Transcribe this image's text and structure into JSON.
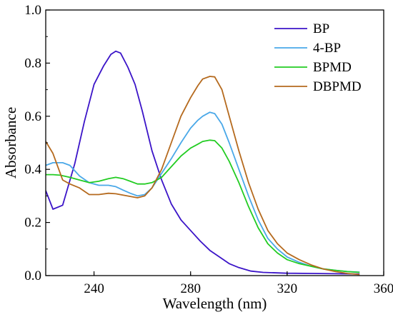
{
  "chart_data": {
    "type": "line",
    "title": "",
    "xlabel": "Wavelength (nm)",
    "ylabel": "Absorbance",
    "xlim": [
      220,
      360
    ],
    "ylim": [
      0,
      1.0
    ],
    "xticks": [
      240,
      280,
      320,
      360
    ],
    "yticks": [
      "0.0",
      "0.2",
      "0.4",
      "0.6",
      "0.8",
      "1.0"
    ],
    "grid": false,
    "legend_position": "top-right",
    "series": [
      {
        "name": "BP",
        "color": "#3b14c8",
        "points": [
          [
            220,
            0.32
          ],
          [
            223,
            0.25
          ],
          [
            227,
            0.265
          ],
          [
            232,
            0.42
          ],
          [
            236,
            0.58
          ],
          [
            240,
            0.72
          ],
          [
            244,
            0.79
          ],
          [
            247,
            0.833
          ],
          [
            249,
            0.845
          ],
          [
            251,
            0.838
          ],
          [
            254,
            0.785
          ],
          [
            257,
            0.72
          ],
          [
            260,
            0.62
          ],
          [
            264,
            0.47
          ],
          [
            268,
            0.36
          ],
          [
            272,
            0.27
          ],
          [
            276,
            0.21
          ],
          [
            280,
            0.17
          ],
          [
            284,
            0.13
          ],
          [
            288,
            0.095
          ],
          [
            292,
            0.07
          ],
          [
            296,
            0.045
          ],
          [
            300,
            0.03
          ],
          [
            305,
            0.017
          ],
          [
            310,
            0.012
          ],
          [
            320,
            0.009
          ],
          [
            330,
            0.008
          ],
          [
            340,
            0.007
          ],
          [
            350,
            0.006
          ]
        ]
      },
      {
        "name": "4-BP",
        "color": "#4aa8e8",
        "points": [
          [
            220,
            0.415
          ],
          [
            223,
            0.425
          ],
          [
            227,
            0.425
          ],
          [
            230,
            0.415
          ],
          [
            234,
            0.375
          ],
          [
            238,
            0.35
          ],
          [
            242,
            0.34
          ],
          [
            246,
            0.34
          ],
          [
            249,
            0.335
          ],
          [
            252,
            0.322
          ],
          [
            255,
            0.31
          ],
          [
            258,
            0.3
          ],
          [
            261,
            0.305
          ],
          [
            264,
            0.33
          ],
          [
            268,
            0.385
          ],
          [
            272,
            0.44
          ],
          [
            276,
            0.5
          ],
          [
            280,
            0.555
          ],
          [
            283,
            0.585
          ],
          [
            285,
            0.6
          ],
          [
            288,
            0.615
          ],
          [
            290,
            0.61
          ],
          [
            293,
            0.57
          ],
          [
            296,
            0.5
          ],
          [
            300,
            0.4
          ],
          [
            304,
            0.3
          ],
          [
            308,
            0.21
          ],
          [
            312,
            0.14
          ],
          [
            316,
            0.1
          ],
          [
            320,
            0.07
          ],
          [
            325,
            0.05
          ],
          [
            330,
            0.035
          ],
          [
            335,
            0.025
          ],
          [
            340,
            0.02
          ],
          [
            345,
            0.015
          ],
          [
            350,
            0.013
          ]
        ]
      },
      {
        "name": "BPMD",
        "color": "#22cc22",
        "points": [
          [
            220,
            0.38
          ],
          [
            223,
            0.38
          ],
          [
            226,
            0.378
          ],
          [
            230,
            0.37
          ],
          [
            234,
            0.36
          ],
          [
            238,
            0.35
          ],
          [
            242,
            0.355
          ],
          [
            246,
            0.365
          ],
          [
            249,
            0.37
          ],
          [
            252,
            0.365
          ],
          [
            255,
            0.355
          ],
          [
            258,
            0.345
          ],
          [
            261,
            0.345
          ],
          [
            264,
            0.35
          ],
          [
            268,
            0.37
          ],
          [
            272,
            0.41
          ],
          [
            276,
            0.45
          ],
          [
            280,
            0.48
          ],
          [
            283,
            0.495
          ],
          [
            285,
            0.505
          ],
          [
            288,
            0.51
          ],
          [
            290,
            0.508
          ],
          [
            293,
            0.48
          ],
          [
            296,
            0.43
          ],
          [
            300,
            0.35
          ],
          [
            304,
            0.26
          ],
          [
            308,
            0.18
          ],
          [
            312,
            0.12
          ],
          [
            316,
            0.085
          ],
          [
            320,
            0.06
          ],
          [
            325,
            0.045
          ],
          [
            330,
            0.035
          ],
          [
            335,
            0.025
          ],
          [
            340,
            0.02
          ],
          [
            345,
            0.015
          ],
          [
            350,
            0.012
          ]
        ]
      },
      {
        "name": "DBPMD",
        "color": "#b56a1e",
        "points": [
          [
            220,
            0.505
          ],
          [
            223,
            0.46
          ],
          [
            227,
            0.36
          ],
          [
            230,
            0.345
          ],
          [
            234,
            0.33
          ],
          [
            238,
            0.305
          ],
          [
            242,
            0.305
          ],
          [
            246,
            0.31
          ],
          [
            249,
            0.308
          ],
          [
            252,
            0.303
          ],
          [
            255,
            0.298
          ],
          [
            258,
            0.293
          ],
          [
            261,
            0.3
          ],
          [
            264,
            0.33
          ],
          [
            268,
            0.4
          ],
          [
            272,
            0.5
          ],
          [
            276,
            0.6
          ],
          [
            280,
            0.67
          ],
          [
            283,
            0.715
          ],
          [
            285,
            0.74
          ],
          [
            288,
            0.75
          ],
          [
            290,
            0.748
          ],
          [
            293,
            0.7
          ],
          [
            296,
            0.6
          ],
          [
            300,
            0.47
          ],
          [
            304,
            0.35
          ],
          [
            308,
            0.25
          ],
          [
            312,
            0.17
          ],
          [
            316,
            0.12
          ],
          [
            320,
            0.085
          ],
          [
            325,
            0.06
          ],
          [
            330,
            0.04
          ],
          [
            335,
            0.025
          ],
          [
            340,
            0.015
          ],
          [
            345,
            0.008
          ],
          [
            350,
            0.004
          ]
        ]
      }
    ]
  }
}
